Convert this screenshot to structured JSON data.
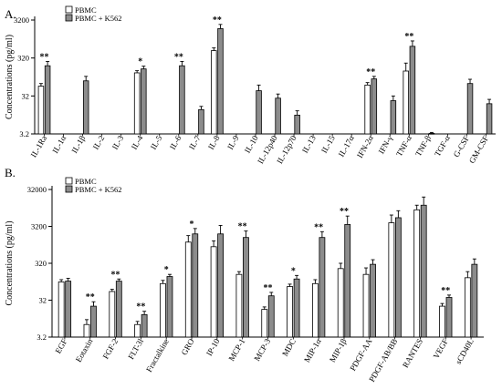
{
  "colors": {
    "pbmc": "#ffffff",
    "pbmc_k562": "#8c8c8c",
    "axis": "#000000"
  },
  "chart_data": [
    {
      "panel_label": "A.",
      "type": "bar",
      "scale": "log",
      "ylabel": "Concentrations (pg/ml)",
      "ylim": [
        3.2,
        3200
      ],
      "yticks": [
        3.2,
        32,
        320,
        3200
      ],
      "ytick_labels": [
        "3.2",
        "32",
        "320",
        "3200"
      ],
      "legend": [
        "PBMC",
        "PBMC + K562"
      ],
      "legend_position": "top-left",
      "categories": [
        "IL-1Ra",
        "IL-1α",
        "IL-1β",
        "IL-2",
        "IL-3",
        "IL-4",
        "IL-5",
        "IL-6",
        "IL-7",
        "IL-8",
        "IL-9",
        "IL-10",
        "IL-12p40",
        "IL-12p70",
        "IL-13",
        "IL-15",
        "IL-17α",
        "IFN-2α",
        "IFN-γ",
        "TNF-α",
        "TNF-β",
        "TGF-α",
        "G-CSF",
        "GM-CSF"
      ],
      "series": [
        {
          "name": "PBMC",
          "values": [
            58,
            null,
            null,
            null,
            null,
            130,
            null,
            null,
            null,
            500,
            null,
            null,
            null,
            null,
            null,
            null,
            null,
            62,
            null,
            145,
            null,
            null,
            null,
            null
          ],
          "errors": [
            10,
            null,
            null,
            null,
            null,
            18,
            null,
            null,
            null,
            90,
            null,
            null,
            null,
            null,
            null,
            null,
            null,
            10,
            null,
            90,
            null,
            null,
            null,
            null
          ]
        },
        {
          "name": "PBMC + K562",
          "values": [
            200,
            null,
            80,
            null,
            null,
            165,
            null,
            200,
            14,
            1900,
            null,
            44,
            28,
            10,
            null,
            null,
            null,
            90,
            24,
            650,
            3.3,
            null,
            68,
            20
          ],
          "errors": [
            60,
            null,
            25,
            null,
            null,
            30,
            null,
            60,
            3,
            550,
            null,
            18,
            8,
            3,
            null,
            null,
            null,
            15,
            8,
            250,
            0.2,
            null,
            20,
            6
          ]
        }
      ],
      "significance": [
        {
          "category": "IL-1Ra",
          "mark": "**"
        },
        {
          "category": "IL-4",
          "mark": "*"
        },
        {
          "category": "IL-6",
          "mark": "**"
        },
        {
          "category": "IL-8",
          "mark": "**"
        },
        {
          "category": "IFN-2α",
          "mark": "**"
        },
        {
          "category": "TNF-α",
          "mark": "**"
        }
      ]
    },
    {
      "panel_label": "B.",
      "type": "bar",
      "scale": "log",
      "ylabel": "Concentrations (pg/ml)",
      "ylim": [
        3.2,
        32000
      ],
      "yticks": [
        3.2,
        32,
        320,
        3200,
        32000
      ],
      "ytick_labels": [
        "3.2",
        "32",
        "320",
        "3200",
        "32000"
      ],
      "legend": [
        "PBMC",
        "PBMC + K562"
      ],
      "legend_position": "top-left",
      "categories": [
        "EGF",
        "Eotaxin",
        "FGF-2",
        "FLT-3l",
        "Fractalkine",
        "GRO",
        "IP-10",
        "MCP-1",
        "MCP-3",
        "MDC",
        "MIP-1α",
        "MIP-1β",
        "PDGF-AA",
        "PDGF-AB/BB",
        "RANTES",
        "VEGF",
        "sCD40L"
      ],
      "series": [
        {
          "name": "PBMC",
          "values": [
            100,
            7,
            55,
            7,
            90,
            1200,
            900,
            160,
            18,
            75,
            90,
            230,
            160,
            4000,
            9000,
            22,
            130
          ],
          "errors": [
            15,
            2.5,
            8,
            1.5,
            20,
            600,
            400,
            30,
            3,
            12,
            25,
            90,
            80,
            2500,
            3000,
            4,
            60
          ]
        },
        {
          "name": "PBMC + K562",
          "values": [
            105,
            22,
            105,
            13,
            140,
            2000,
            2000,
            1600,
            42,
            120,
            1600,
            3600,
            300,
            5500,
            12000,
            38,
            300
          ],
          "errors": [
            20,
            7,
            15,
            3,
            20,
            800,
            1400,
            800,
            10,
            30,
            700,
            2500,
            100,
            3000,
            8000,
            6,
            120
          ]
        }
      ],
      "significance": [
        {
          "category": "Eotaxin",
          "mark": "**"
        },
        {
          "category": "FGF-2",
          "mark": "**"
        },
        {
          "category": "FLT-3l",
          "mark": "**"
        },
        {
          "category": "Fractalkine",
          "mark": "*"
        },
        {
          "category": "GRO",
          "mark": "*"
        },
        {
          "category": "MCP-1",
          "mark": "**"
        },
        {
          "category": "MCP-3",
          "mark": "**"
        },
        {
          "category": "MDC",
          "mark": "*"
        },
        {
          "category": "MIP-1α",
          "mark": "**"
        },
        {
          "category": "MIP-1β",
          "mark": "**"
        },
        {
          "category": "VEGF",
          "mark": "**"
        }
      ]
    }
  ]
}
